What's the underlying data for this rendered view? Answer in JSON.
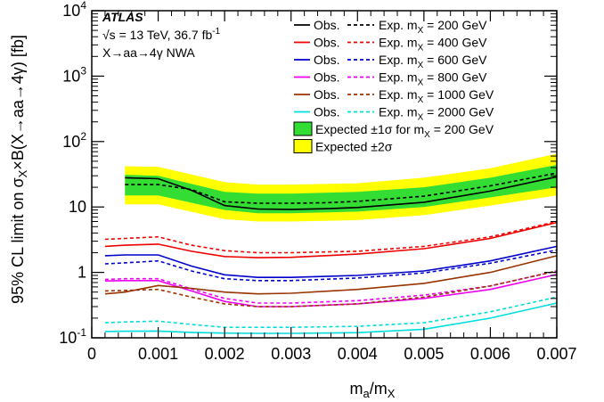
{
  "chart_data": {
    "type": "line",
    "xlabel": "m_a/m_X",
    "ylabel": "95% CL limit on σ_X×B(X→aa→4γ) [fb]",
    "xlim": [
      0,
      0.007
    ],
    "ylim": [
      0.1,
      10000
    ],
    "yscale": "log",
    "x_ticks": [
      "0",
      "0.001",
      "0.002",
      "0.003",
      "0.004",
      "0.005",
      "0.006",
      "0.007"
    ],
    "y_ticks": [
      "10^-1",
      "1",
      "10",
      "10^2",
      "10^3",
      "10^4"
    ],
    "annotations": {
      "experiment": "ATLAS",
      "energy": "√s = 13 TeV, 36.7 fb^-1",
      "process": "X→aa→4γ NWA"
    },
    "legend_placement": "top-right",
    "band": {
      "x": [
        0.0005,
        0.001,
        0.002,
        0.0025,
        0.003,
        0.004,
        0.005,
        0.006,
        0.007
      ],
      "one_sigma": {
        "label": "Expected ±1σ for m_X = 200 GeV",
        "color": "#33dd33",
        "low": [
          15,
          15,
          9,
          8,
          8,
          8.5,
          10,
          14,
          20
        ],
        "high": [
          31,
          30,
          17,
          16,
          16,
          17,
          20,
          28,
          44
        ]
      },
      "two_sigma": {
        "label": "Expected ±2σ",
        "color": "#ffff00",
        "low": [
          11,
          11,
          6.5,
          6,
          6,
          6.3,
          7.5,
          10.5,
          15
        ],
        "high": [
          42,
          41,
          24,
          22,
          22,
          23,
          28,
          39,
          65
        ]
      }
    },
    "series": [
      {
        "mass": "200",
        "color": "#000000",
        "obs": {
          "x": [
            0.0005,
            0.001,
            0.0015,
            0.002,
            0.0025,
            0.003,
            0.0035,
            0.004,
            0.005,
            0.006,
            0.007
          ],
          "y": [
            28,
            27,
            18,
            10.5,
            9.3,
            9.2,
            9.4,
            9.8,
            11.8,
            17.5,
            29
          ]
        },
        "exp": {
          "x": [
            0.0005,
            0.001,
            0.0015,
            0.002,
            0.0025,
            0.003,
            0.0035,
            0.004,
            0.005,
            0.006,
            0.007
          ],
          "y": [
            22,
            22,
            18.5,
            12,
            11.4,
            11.4,
            11.6,
            12.2,
            14.6,
            21,
            33
          ]
        }
      },
      {
        "mass": "400",
        "color": "#ee0000",
        "obs": {
          "x": [
            0.0002,
            0.0005,
            0.001,
            0.0015,
            0.002,
            0.0025,
            0.003,
            0.004,
            0.005,
            0.006,
            0.007
          ],
          "y": [
            2.5,
            2.6,
            2.7,
            2.1,
            1.75,
            1.68,
            1.7,
            1.9,
            2.3,
            3.3,
            5.8
          ]
        },
        "exp": {
          "x": [
            0.0002,
            0.0005,
            0.001,
            0.0015,
            0.002,
            0.0025,
            0.003,
            0.004,
            0.005,
            0.006,
            0.007
          ],
          "y": [
            3.2,
            3.3,
            3.5,
            2.6,
            2.15,
            2.0,
            2.0,
            2.1,
            2.5,
            3.5,
            6.0
          ]
        }
      },
      {
        "mass": "600",
        "color": "#0000cc",
        "obs": {
          "x": [
            0.0002,
            0.0005,
            0.001,
            0.0015,
            0.002,
            0.0025,
            0.003,
            0.004,
            0.005,
            0.006,
            0.007
          ],
          "y": [
            1.8,
            1.85,
            1.85,
            1.25,
            0.92,
            0.84,
            0.84,
            0.9,
            1.05,
            1.5,
            2.5
          ]
        },
        "exp": {
          "x": [
            0.0002,
            0.0005,
            0.001,
            0.0015,
            0.002,
            0.0025,
            0.003,
            0.004,
            0.005,
            0.006,
            0.007
          ],
          "y": [
            1.35,
            1.4,
            1.5,
            1.05,
            0.8,
            0.75,
            0.75,
            0.82,
            0.98,
            1.38,
            2.2
          ]
        }
      },
      {
        "mass": "800",
        "color": "#ee00ee",
        "obs": {
          "x": [
            0.0002,
            0.0005,
            0.001,
            0.0015,
            0.002,
            0.0025,
            0.003,
            0.004,
            0.005,
            0.006,
            0.007
          ],
          "y": [
            0.74,
            0.75,
            0.75,
            0.52,
            0.36,
            0.3,
            0.3,
            0.33,
            0.4,
            0.55,
            0.93
          ]
        },
        "exp": {
          "x": [
            0.0002,
            0.0005,
            0.001,
            0.0015,
            0.002,
            0.0025,
            0.003,
            0.004,
            0.005,
            0.006,
            0.007
          ],
          "y": [
            0.78,
            0.8,
            0.8,
            0.56,
            0.4,
            0.34,
            0.34,
            0.37,
            0.45,
            0.62,
            1.05
          ]
        }
      },
      {
        "mass": "1000",
        "color": "#993300",
        "obs": {
          "x": [
            0.0002,
            0.0005,
            0.001,
            0.0015,
            0.002,
            0.0025,
            0.003,
            0.004,
            0.005,
            0.006,
            0.007
          ],
          "y": [
            0.47,
            0.5,
            0.63,
            0.57,
            0.5,
            0.47,
            0.48,
            0.55,
            0.68,
            1.0,
            1.8
          ]
        },
        "exp": {
          "x": [
            0.0002,
            0.0005,
            0.001,
            0.0015,
            0.002,
            0.0025,
            0.003,
            0.004,
            0.005,
            0.006,
            0.007
          ],
          "y": [
            0.52,
            0.53,
            0.55,
            0.42,
            0.33,
            0.3,
            0.3,
            0.33,
            0.42,
            0.62,
            1.05
          ]
        }
      },
      {
        "mass": "2000",
        "color": "#00dddd",
        "obs": {
          "x": [
            0.0002,
            0.0005,
            0.001,
            0.0015,
            0.002,
            0.0025,
            0.003,
            0.004,
            0.005,
            0.006,
            0.007
          ],
          "y": [
            0.125,
            0.126,
            0.127,
            0.121,
            0.118,
            0.117,
            0.117,
            0.12,
            0.135,
            0.2,
            0.34
          ]
        },
        "exp": {
          "x": [
            0.0002,
            0.0005,
            0.001,
            0.0015,
            0.002,
            0.0025,
            0.003,
            0.004,
            0.005,
            0.006,
            0.007
          ],
          "y": [
            0.17,
            0.175,
            0.18,
            0.16,
            0.145,
            0.145,
            0.145,
            0.15,
            0.17,
            0.25,
            0.42
          ]
        }
      }
    ],
    "legend": {
      "obs_label": "Obs.",
      "exp_label": "Exp. m",
      "exp_sub": "X",
      "mass_suffix": " GeV",
      "eq": " = "
    }
  }
}
